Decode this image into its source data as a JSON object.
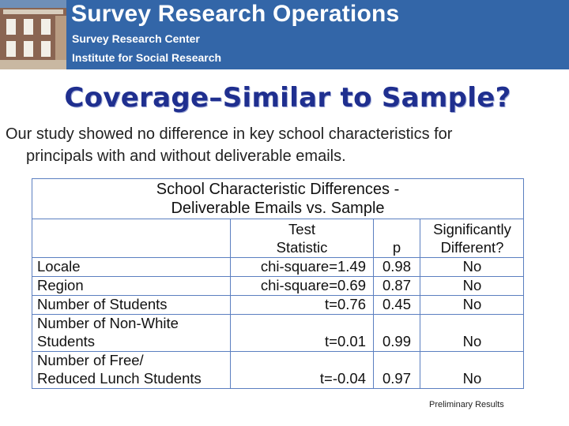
{
  "banner": {
    "title": "Survey Research Operations",
    "sub1": "Survey Research Center",
    "sub2": "Institute for Social Research"
  },
  "slide": {
    "title": "Coverage–Similar to Sample?",
    "intro_line1": "Our study showed no difference in key school characteristics for",
    "intro_line2": "principals with and without deliverable emails."
  },
  "table": {
    "caption_line1": "School Characteristic Differences -",
    "caption_line2": "Deliverable Emails vs. Sample",
    "header": {
      "test_line1": "Test",
      "test_line2": "Statistic",
      "p": "p",
      "sig_line1": "Significantly",
      "sig_line2": "Different?"
    },
    "rows": [
      {
        "label1": "Locale",
        "label2": "",
        "stat": "chi-square=1.49",
        "p": "0.98",
        "sig": "No"
      },
      {
        "label1": "Region",
        "label2": "",
        "stat": "chi-square=0.69",
        "p": "0.87",
        "sig": "No"
      },
      {
        "label1": "Number of Students",
        "label2": "",
        "stat": "t=0.76",
        "p": "0.45",
        "sig": "No"
      },
      {
        "label1": "Number of Non-White",
        "label2": "Students",
        "stat": "t=0.01",
        "p": "0.99",
        "sig": "No"
      },
      {
        "label1": "Number of Free/",
        "label2": "Reduced Lunch Students",
        "stat": "t=-0.04",
        "p": "0.97",
        "sig": "No"
      }
    ]
  },
  "footnote": "Preliminary Results",
  "colors": {
    "banner": "#3366a8",
    "title": "#1f2f8f",
    "grid": "#5b7fc0"
  }
}
